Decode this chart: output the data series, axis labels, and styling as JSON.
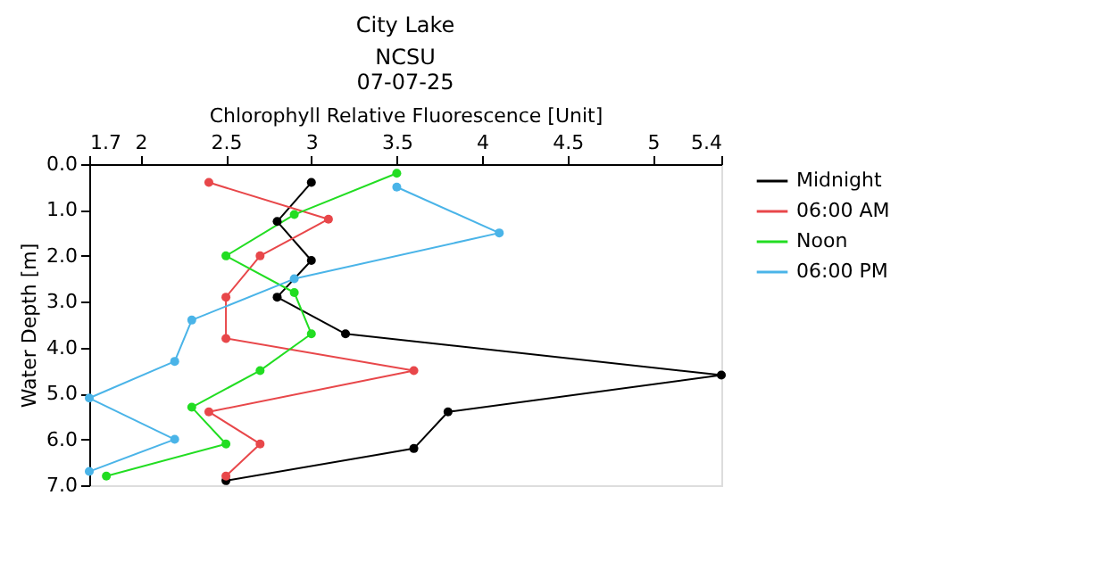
{
  "chart_data": {
    "type": "line",
    "title": "City Lake",
    "subtitle": "NCSU",
    "annotations": [
      "07-07-25"
    ],
    "xlabel": "Chlorophyll Relative Fluorescence [Unit]",
    "ylabel": "Water Depth [m]",
    "xlim": [
      1.7,
      5.4
    ],
    "xticks": [
      1.7,
      2,
      2.5,
      3,
      3.5,
      4,
      4.5,
      5,
      5.4
    ],
    "ylim": [
      7,
      0
    ],
    "yticks": [
      {
        "value": 0,
        "label": "0.0"
      },
      {
        "value": 1,
        "label": "1.0"
      },
      {
        "value": 2,
        "label": "2.0"
      },
      {
        "value": 3,
        "label": "3.0"
      },
      {
        "value": 4,
        "label": "4.0"
      },
      {
        "value": 5,
        "label": "5.0"
      },
      {
        "value": 6,
        "label": "6.0"
      },
      {
        "value": 7,
        "label": "7.0"
      }
    ],
    "grid": false,
    "legend": "top right",
    "marker": "circle",
    "line_style": "solid",
    "series": [
      {
        "name": "Midnight",
        "color": "#000000",
        "x": [
          3.0,
          2.8,
          3.0,
          2.8,
          3.2,
          5.4,
          3.8,
          3.6,
          2.5
        ],
        "values": [
          0.4,
          1.25,
          2.1,
          2.9,
          3.7,
          4.6,
          5.4,
          6.2,
          6.9
        ]
      },
      {
        "name": "06:00 AM",
        "color": "#e8474a",
        "x": [
          2.4,
          3.1,
          2.7,
          2.5,
          2.5,
          3.6,
          2.4,
          2.7,
          2.5
        ],
        "values": [
          0.4,
          1.2,
          2.0,
          2.9,
          3.8,
          4.5,
          5.4,
          6.1,
          6.8
        ]
      },
      {
        "name": "Noon",
        "color": "#22dd22",
        "x": [
          3.5,
          2.9,
          2.5,
          2.9,
          3.0,
          2.7,
          2.3,
          2.5,
          1.8
        ],
        "values": [
          0.2,
          1.1,
          2.0,
          2.8,
          3.7,
          4.5,
          5.3,
          6.1,
          6.8
        ]
      },
      {
        "name": "06:00 PM",
        "color": "#4ab4e8",
        "x": [
          3.5,
          4.1,
          2.9,
          2.3,
          2.2,
          1.7,
          2.2,
          1.7
        ],
        "values": [
          0.5,
          1.5,
          2.5,
          3.4,
          4.3,
          5.1,
          6.0,
          6.7
        ]
      }
    ]
  }
}
